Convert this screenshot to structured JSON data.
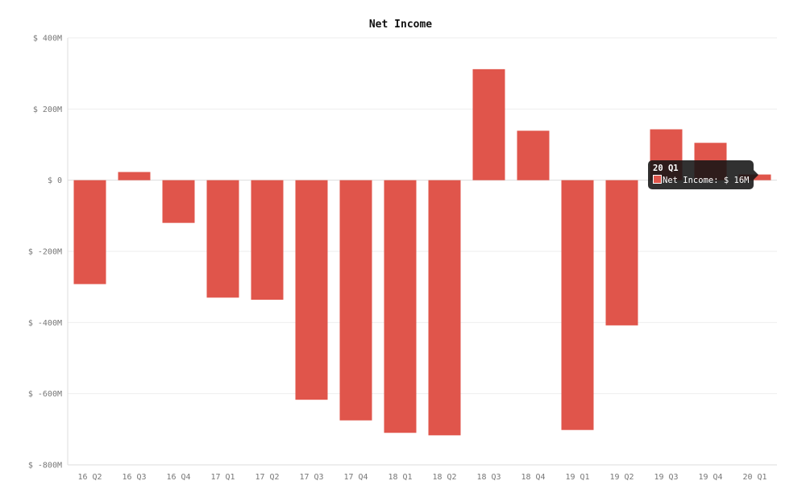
{
  "chart_data": {
    "type": "bar",
    "title": "Net Income",
    "categories": [
      "16 Q2",
      "16 Q3",
      "16 Q4",
      "17 Q1",
      "17 Q2",
      "17 Q3",
      "17 Q4",
      "18 Q1",
      "18 Q2",
      "18 Q3",
      "18 Q4",
      "19 Q1",
      "19 Q2",
      "19 Q3",
      "19 Q4",
      "20 Q1"
    ],
    "series": [
      {
        "name": "Net Income",
        "values": [
          -292,
          23,
          -120,
          -330,
          -336,
          -617,
          -675,
          -710,
          -717,
          312,
          139,
          -702,
          -408,
          143,
          105,
          16
        ]
      }
    ],
    "ylim": [
      -800,
      400
    ],
    "yticks": [
      400,
      200,
      0,
      -200,
      -400,
      -600,
      -800
    ],
    "ytick_labels": [
      "$ 400M",
      "$ 200M",
      "$ 0",
      "$ -200M",
      "$ -400M",
      "$ -600M",
      "$ -800M"
    ],
    "grid": true,
    "color": "#e0554b"
  },
  "tooltip": {
    "title": "20 Q1",
    "label": "Net Income: $ 16M"
  }
}
